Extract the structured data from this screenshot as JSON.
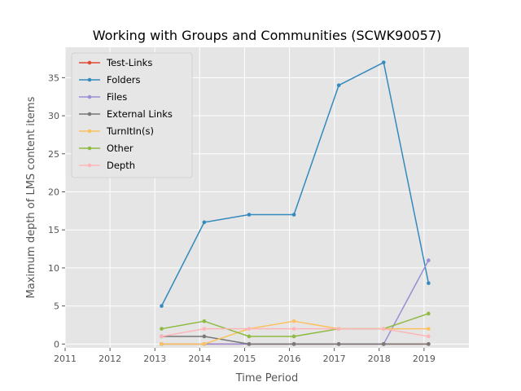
{
  "chart_data": {
    "type": "line",
    "title": "Working with Groups and Communities (SCWK90057)",
    "xlabel": "Time Period",
    "ylabel": "Maximum depth of LMS content items",
    "xlim": [
      2011,
      2020
    ],
    "ylim": [
      -0.5,
      39
    ],
    "x_ticks": [
      2011,
      2012,
      2013,
      2014,
      2015,
      2016,
      2017,
      2018,
      2019
    ],
    "y_ticks": [
      0,
      5,
      10,
      15,
      20,
      25,
      30,
      35
    ],
    "grid": true,
    "legend_position": "top-left",
    "x": [
      2013.15,
      2014.1,
      2015.1,
      2016.1,
      2017.1,
      2018.1,
      2019.1
    ],
    "series": [
      {
        "name": "Test-Links",
        "color": "#e24a33",
        "values": [
          0,
          0,
          0,
          0,
          0,
          0,
          0
        ]
      },
      {
        "name": "Folders",
        "color": "#348abd",
        "values": [
          5,
          16,
          17,
          17,
          34,
          37,
          8
        ]
      },
      {
        "name": "Files",
        "color": "#988ed5",
        "values": [
          0,
          0,
          0,
          0,
          0,
          0,
          11
        ]
      },
      {
        "name": "External Links",
        "color": "#777777",
        "values": [
          1,
          1,
          0,
          0,
          0,
          0,
          0
        ]
      },
      {
        "name": "TurnItIn(s)",
        "color": "#fbc15e",
        "values": [
          0,
          0,
          2,
          3,
          2,
          2,
          2
        ]
      },
      {
        "name": "Other",
        "color": "#8eba42",
        "values": [
          2,
          3,
          1,
          1,
          2,
          2,
          4
        ]
      },
      {
        "name": "Depth",
        "color": "#ffb5b8",
        "values": [
          1,
          2,
          2,
          2,
          2,
          2,
          1
        ]
      }
    ]
  }
}
